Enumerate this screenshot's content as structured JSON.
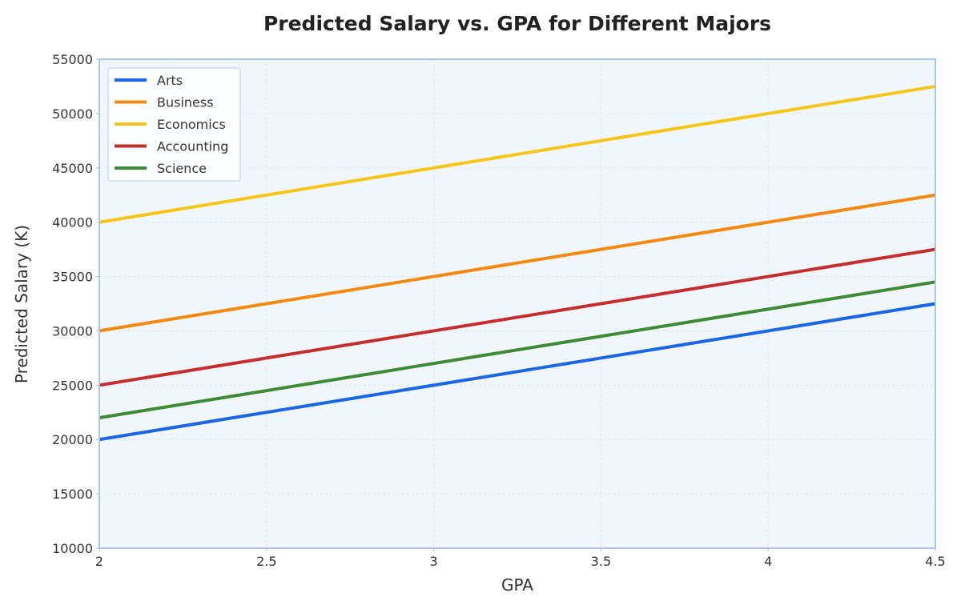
{
  "chart_data": {
    "type": "line",
    "title": "Predicted Salary vs. GPA for Different Majors",
    "xlabel": "GPA",
    "ylabel": "Predicted Salary (K)",
    "xlim": [
      2,
      4.5
    ],
    "ylim": [
      10000,
      55000
    ],
    "xticks": [
      2,
      2.5,
      3,
      3.5,
      4,
      4.5
    ],
    "xtick_labels": [
      "2",
      "2.5",
      "3",
      "3.5",
      "4",
      "4.5"
    ],
    "yticks": [
      10000,
      15000,
      20000,
      25000,
      30000,
      35000,
      40000,
      45000,
      50000,
      55000
    ],
    "ytick_labels": [
      "10000",
      "15000",
      "20000",
      "25000",
      "30000",
      "35000",
      "40000",
      "45000",
      "50000",
      "55000"
    ],
    "grid": true,
    "legend_position": "top-left",
    "x": [
      2,
      4.5
    ],
    "series": [
      {
        "name": "Arts",
        "color": "#1a66e6",
        "values": [
          20000,
          32500
        ]
      },
      {
        "name": "Business",
        "color": "#f5890f",
        "values": [
          30000,
          42500
        ]
      },
      {
        "name": "Economics",
        "color": "#f5c518",
        "values": [
          40000,
          52500
        ]
      },
      {
        "name": "Accounting",
        "color": "#c62d2d",
        "values": [
          25000,
          37500
        ]
      },
      {
        "name": "Science",
        "color": "#3f8a35",
        "values": [
          22000,
          34500
        ]
      }
    ]
  },
  "colors": {
    "plot_background": "#f1f6fc",
    "frame": "#a9c4ee",
    "grid": "#dce6f2"
  }
}
